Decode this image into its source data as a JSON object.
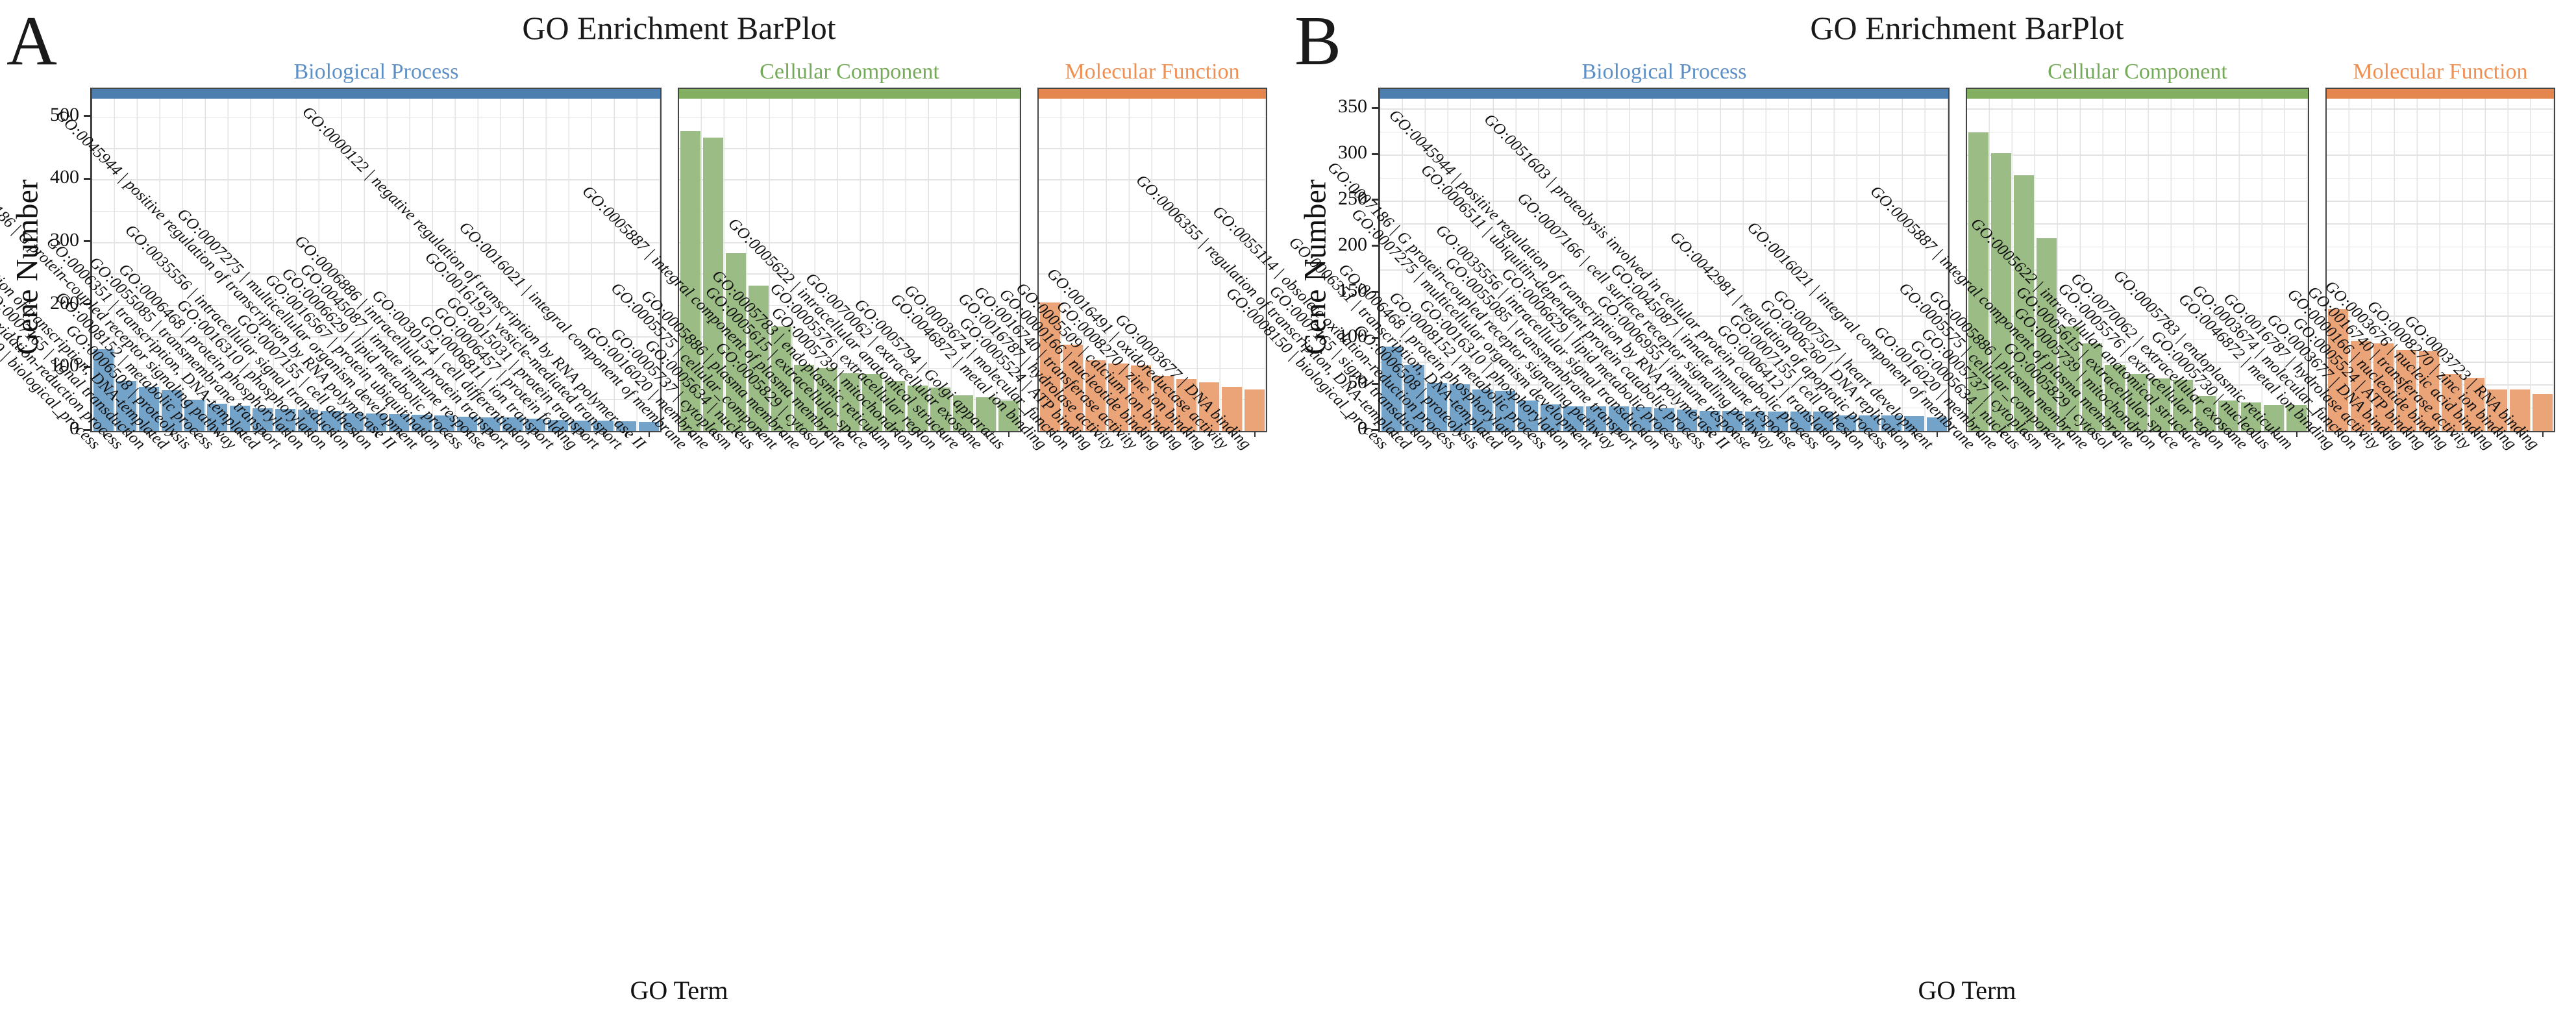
{
  "chart_data": [
    {
      "panel": "A",
      "type": "bar",
      "title": "GO Enrichment BarPlot",
      "xlabel": "GO Term",
      "ylabel": "Gene Number",
      "ylim": [
        0,
        545
      ],
      "yticks": [
        0,
        100,
        200,
        300,
        400,
        500
      ],
      "minor_gridline_step": 50,
      "grid": true,
      "legend_position": "none",
      "facets": [
        {
          "label": "Biological Process",
          "bar_color": "#74a3c9",
          "strip_color": "#4d7eb0",
          "title_color": "#5d8fc7",
          "categories": [
            "GO:0008150 | biological_process",
            "GO:0055114 | obsolete oxidation-reduction process",
            "GO:0007165 | signal transduction",
            "GO:0006355 | regulation of transcription, DNA-templated",
            "GO:0006508 | proteolysis",
            "GO:0008152 | metabolic process",
            "GO:0007186 | G protein-coupled receptor signaling pathway",
            "GO:0006351 | transcription, DNA-templated",
            "GO:0055085 | transmembrane transport",
            "GO:0006468 | protein phosphorylation",
            "GO:0016310 | phosphorylation",
            "GO:0035556 | intracellular signal transduction",
            "GO:0007155 | cell adhesion",
            "GO:0045944 | positive regulation of transcription by RNA polymerase II",
            "GO:0007275 | multicellular organism development",
            "GO:0016567 | protein ubiquitination",
            "GO:0006629 | lipid metabolic process",
            "GO:0045087 | innate immune response",
            "GO:0006886 | intracellular protein transport",
            "GO:0030154 | cell differentiation",
            "GO:0006811 | ion transport",
            "GO:0006457 | protein folding",
            "GO:0015031 | protein transport",
            "GO:0016192 | vesicle-mediated transport",
            "GO:0000122 | negative regulation of transcription by RNA polymerase II"
          ],
          "values": [
            130,
            80,
            70,
            65,
            50,
            43,
            40,
            36,
            35,
            34,
            32,
            29,
            28,
            27,
            26,
            25,
            23,
            22,
            22,
            20,
            18,
            17,
            17,
            16,
            15
          ]
        },
        {
          "label": "Cellular Component",
          "bar_color": "#9bbc85",
          "strip_color": "#83af60",
          "title_color": "#74aa58",
          "categories": [
            "GO:0016021 | integral component of membrane",
            "GO:0016020 | membrane",
            "GO:0005737 | cytoplasm",
            "GO:0005634 | nucleus",
            "GO:0005575 | cellular_component",
            "GO:0005886 | plasma membrane",
            "GO:0005829 | cytosol",
            "GO:0005887 | integral component of plasma membrane",
            "GO:0005615 | extracellular space",
            "GO:0005783 | endoplasmic reticulum",
            "GO:0005739 | mitochondrion",
            "GO:0005576 | extracellular region",
            "GO:0005622 | intracellular anatomical structure",
            "GO:0070062 | extracellular exosome",
            "GO:0005794 | Golgi apparatus"
          ],
          "values": [
            478,
            467,
            283,
            232,
            167,
            105,
            100,
            92,
            91,
            80,
            72,
            69,
            57,
            54,
            49
          ]
        },
        {
          "label": "Molecular Function",
          "bar_color": "#eaa478",
          "strip_color": "#e3874f",
          "title_color": "#ef8f52",
          "categories": [
            "GO:0046872 | metal ion binding",
            "GO:0003674 | molecular_function",
            "GO:0005524 | ATP binding",
            "GO:0016787 | hydrolase activity",
            "GO:0016740 | transferase activity",
            "GO:0000166 | nucleotide binding",
            "GO:0005509 | calcium ion binding",
            "GO:0008270 | zinc ion binding",
            "GO:0016491 | oxidoreductase activity",
            "GO:0003677 | DNA binding"
          ],
          "values": [
            205,
            138,
            113,
            108,
            104,
            88,
            83,
            78,
            70,
            66
          ]
        }
      ]
    },
    {
      "panel": "B",
      "type": "bar",
      "title": "GO Enrichment BarPlot",
      "xlabel": "GO Term",
      "ylabel": "Gene Number",
      "ylim": [
        0,
        372
      ],
      "yticks": [
        0,
        50,
        100,
        150,
        200,
        250,
        300,
        350
      ],
      "minor_gridline_step": 25,
      "grid": true,
      "legend_position": "none",
      "facets": [
        {
          "label": "Biological Process",
          "bar_color": "#74a3c9",
          "strip_color": "#4d7eb0",
          "title_color": "#5d8fc7",
          "categories": [
            "GO:0008150 | biological_process",
            "GO:0006355 | regulation of transcription, DNA-templated",
            "GO:0007165 | signal transduction",
            "GO:0055114 | obsolete oxidation-reduction process",
            "GO:0006508 | proteolysis",
            "GO:0006351 | transcription, DNA-templated",
            "GO:0006468 | protein phosphorylation",
            "GO:0008152 | metabolic process",
            "GO:0016310 | phosphorylation",
            "GO:0007275 | multicellular organism development",
            "GO:0007186 | G protein-coupled receptor signaling pathway",
            "GO:0055085 | transmembrane transport",
            "GO:0035556 | intracellular signal transduction",
            "GO:0006629 | lipid metabolic process",
            "GO:0006511 | ubiquitin-dependent protein catabolic process",
            "GO:0045944 | positive regulation of transcription by RNA polymerase II",
            "GO:0006955 | immune response",
            "GO:0007166 | cell surface receptor signaling pathway",
            "GO:0045087 | innate immune response",
            "GO:0051603 | proteolysis involved in cellular protein catabolic process",
            "GO:0006412 | translation",
            "GO:0007155 | cell adhesion",
            "GO:0042981 | regulation of apoptotic process",
            "GO:0006260 | DNA replication",
            "GO:0007507 | heart development"
          ],
          "values": [
            92,
            72,
            52,
            51,
            45,
            44,
            33,
            29,
            27,
            27,
            27,
            26,
            25,
            23,
            22,
            22,
            21,
            21,
            21,
            21,
            17,
            17,
            17,
            16,
            15
          ]
        },
        {
          "label": "Cellular Component",
          "bar_color": "#9bbc85",
          "strip_color": "#83af60",
          "title_color": "#74aa58",
          "categories": [
            "GO:0016021 | integral component of membrane",
            "GO:0016020 | membrane",
            "GO:0005634 | nucleus",
            "GO:0005737 | cytoplasm",
            "GO:0005575 | cellular_component",
            "GO:0005886 | plasma membrane",
            "GO:0005829 | cytosol",
            "GO:0005887 | integral component of plasma membrane",
            "GO:0005739 | mitochondrion",
            "GO:0005615 | extracellular space",
            "GO:0005622 | intracellular anatomical structure",
            "GO:0005576 | extracellular region",
            "GO:0070062 | extracellular exosome",
            "GO:0005730 | nucleolus",
            "GO:0005783 | endoplasmic reticulum"
          ],
          "values": [
            325,
            302,
            278,
            210,
            114,
            95,
            72,
            62,
            57,
            56,
            38,
            33,
            31,
            28,
            28
          ]
        },
        {
          "label": "Molecular Function",
          "bar_color": "#eaa478",
          "strip_color": "#e3874f",
          "title_color": "#ef8f52",
          "categories": [
            "GO:0046872 | metal ion binding",
            "GO:0003674 | molecular_function",
            "GO:0016787 | hydrolase activity",
            "GO:0003677 | DNA binding",
            "GO:0005524 | ATP binding",
            "GO:0000166 | nucleotide binding",
            "GO:0016740 | transferase activity",
            "GO:0003676 | nucleic acid binding",
            "GO:0008270 | zinc ion binding",
            "GO:0003723 | RNA binding"
          ],
          "values": [
            133,
            98,
            95,
            88,
            87,
            62,
            58,
            45,
            45,
            40
          ]
        }
      ]
    }
  ]
}
